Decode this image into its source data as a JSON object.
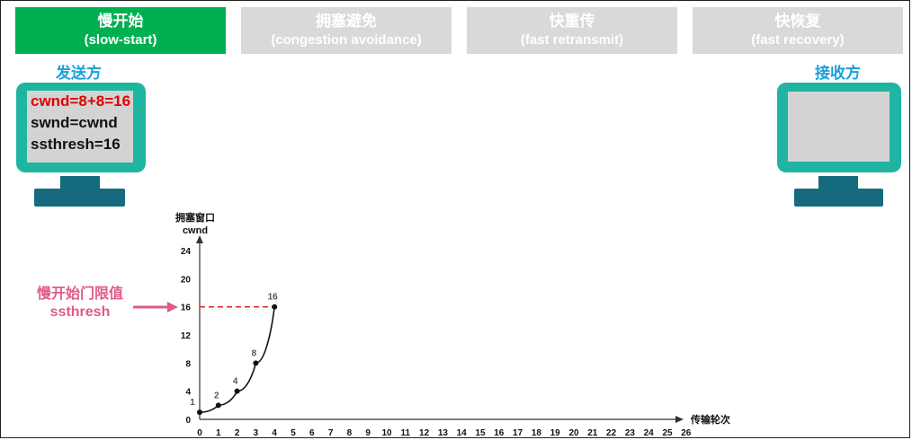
{
  "phases": [
    {
      "cn": "慢开始",
      "en": "(slow-start)",
      "active": true
    },
    {
      "cn": "拥塞避免",
      "en": "(congestion avoidance)",
      "active": false
    },
    {
      "cn": "快重传",
      "en": "(fast retransmit)",
      "active": false
    },
    {
      "cn": "快恢复",
      "en": "(fast recovery)",
      "active": false
    }
  ],
  "sender": {
    "label": "发送方",
    "line1": "cwnd=8+8=16",
    "line2": "swnd=cwnd",
    "line3": "ssthresh=16"
  },
  "receiver": {
    "label": "接收方"
  },
  "ssthresh_annotation": {
    "line1": "慢开始门限值",
    "line2": "ssthresh"
  },
  "colors": {
    "active_tab": "#00b050",
    "inactive_tab": "#d9d9d9",
    "monitor": "#1fb5a0",
    "monitor_stand": "#156b7d",
    "role_label": "#1aa0d8",
    "highlight_red": "#e00000",
    "ssthresh_pink": "#e05a88",
    "threshold_line": "#d62828"
  },
  "chart_data": {
    "type": "line",
    "ylabel_cn": "拥塞窗口",
    "ylabel": "cwnd",
    "xlabel": "传输轮次",
    "x_ticks": [
      0,
      1,
      2,
      3,
      4,
      5,
      6,
      7,
      8,
      9,
      10,
      11,
      12,
      13,
      14,
      15,
      16,
      17,
      18,
      19,
      20,
      21,
      22,
      23,
      24,
      25,
      26
    ],
    "y_ticks": [
      0,
      4,
      8,
      12,
      16,
      20,
      24
    ],
    "xlim": [
      0,
      26
    ],
    "ylim": [
      0,
      24
    ],
    "series": [
      {
        "x": [
          0,
          1,
          2,
          3,
          4
        ],
        "y": [
          1,
          2,
          4,
          8,
          16
        ],
        "point_labels": [
          "1",
          "2",
          "4",
          "8",
          "16"
        ]
      }
    ],
    "threshold": {
      "y": 16,
      "x_end": 4,
      "style": "dashed"
    }
  }
}
